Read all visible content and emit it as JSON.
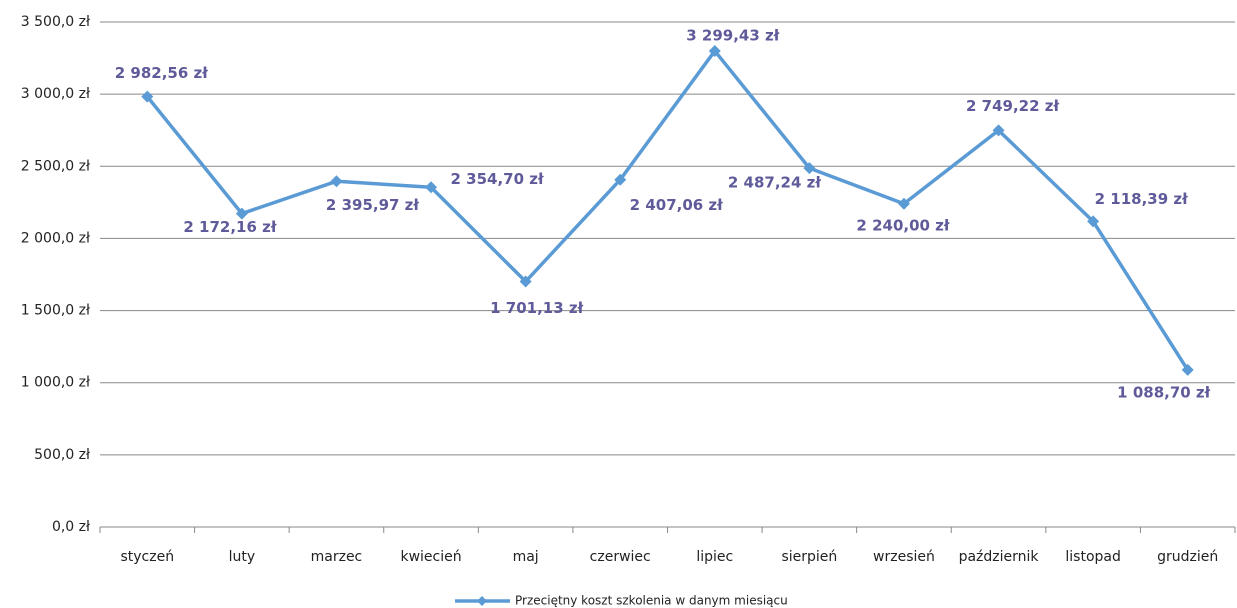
{
  "chart_data": {
    "type": "line",
    "categories": [
      "styczeń",
      "luty",
      "marzec",
      "kwiecień",
      "maj",
      "czerwiec",
      "lipiec",
      "sierpień",
      "wrzesień",
      "październik",
      "listopad",
      "grudzień"
    ],
    "series": [
      {
        "name": "Przeciętny koszt szkolenia w danym miesiącu",
        "color": "#5b9bd5",
        "values": [
          2982.56,
          2172.16,
          2395.97,
          2354.7,
          1701.13,
          2407.06,
          3299.43,
          2487.24,
          2240.0,
          2749.22,
          2118.39,
          1088.7
        ],
        "value_labels": [
          "2 982,56 zł",
          "2 172,16 zł",
          "2 395,97 zł",
          "2 354,70 zł",
          "1 701,13 zł",
          "2 407,06 zł",
          "3 299,43 zł",
          "2 487,24 zł",
          "2 240,00 zł",
          "2 749,22 zł",
          "2 118,39 zł",
          "1 088,70 zł"
        ]
      }
    ],
    "ylim": [
      0,
      3500
    ],
    "yticks": [
      {
        "value": 0,
        "label": "0,0 zł"
      },
      {
        "value": 500,
        "label": "500,0 zł"
      },
      {
        "value": 1000,
        "label": "1 000,0 zł"
      },
      {
        "value": 1500,
        "label": "1 500,0 zł"
      },
      {
        "value": 2000,
        "label": "2 000,0 zł"
      },
      {
        "value": 2500,
        "label": "2 500,0 zł"
      },
      {
        "value": 3000,
        "label": "3 000,0 zł"
      },
      {
        "value": 3500,
        "label": "3 500,0 zł"
      }
    ],
    "grid": true,
    "legend": "bottom"
  }
}
